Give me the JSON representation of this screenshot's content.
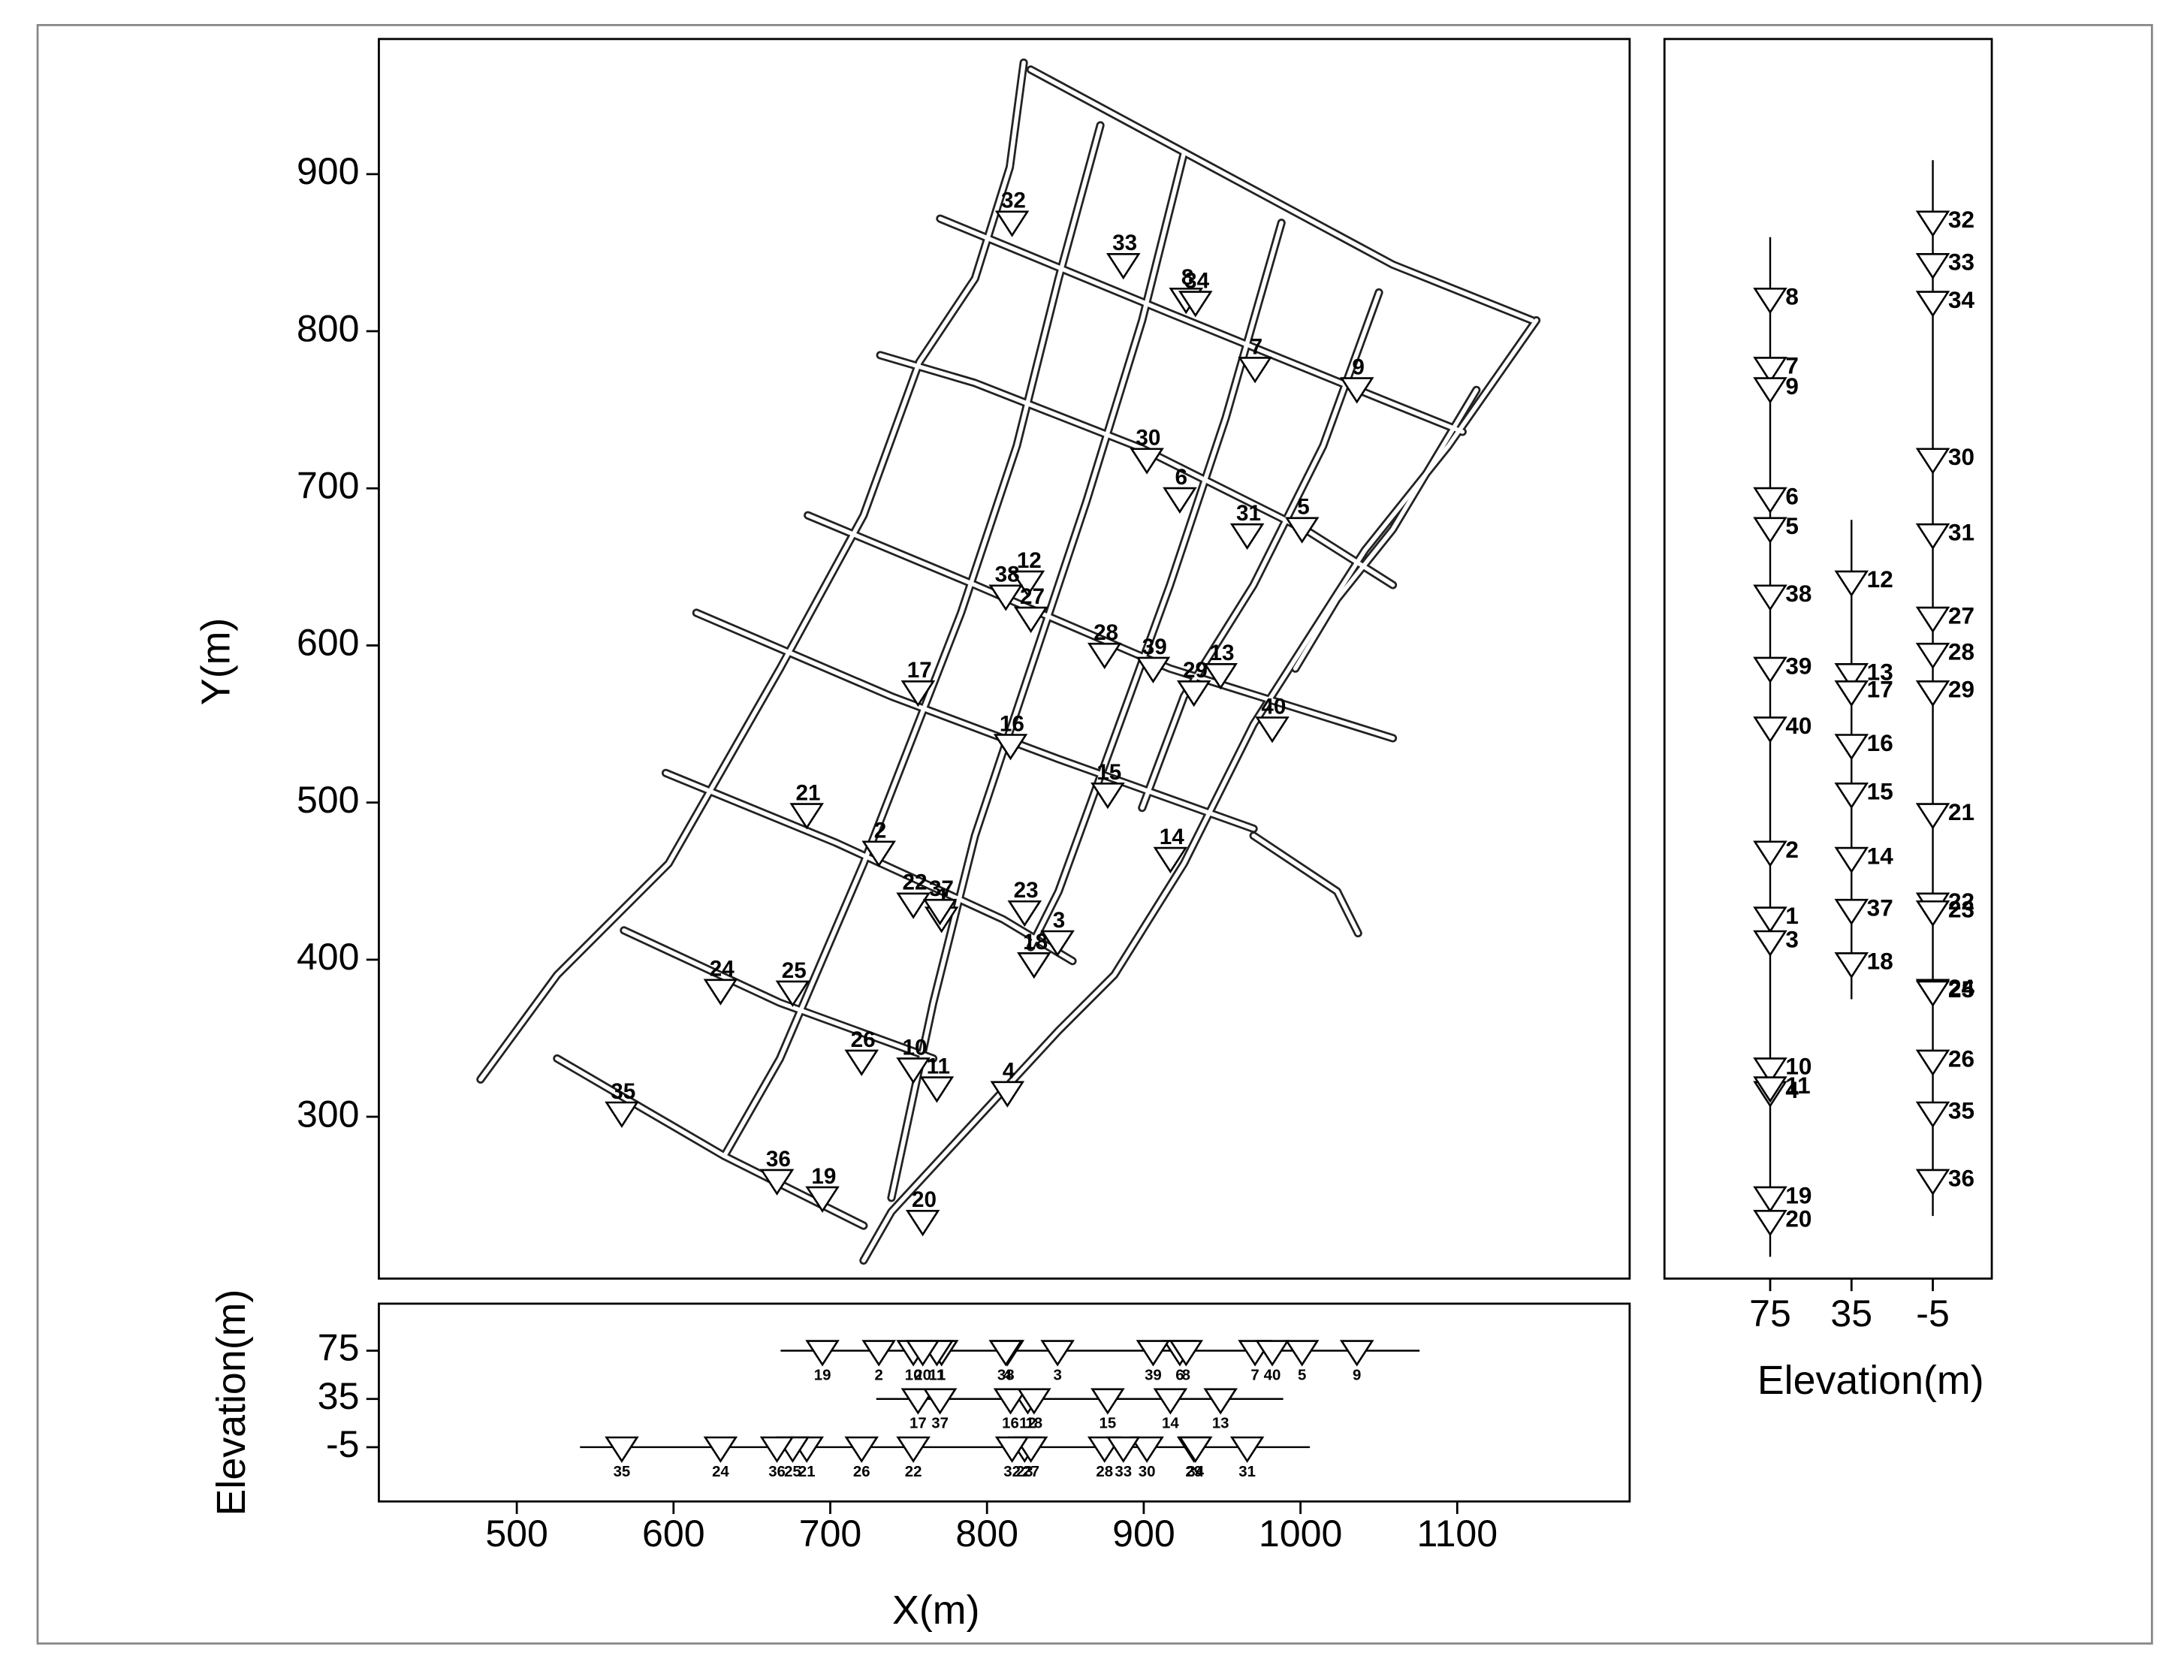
{
  "chart_data": {
    "type": "scatter",
    "xlabel": "X(m)",
    "ylabel": "Y(m)",
    "zlabel": "Elevation(m)",
    "xlim": [
      412,
      1210
    ],
    "ylim": [
      197,
      986
    ],
    "xticks": [
      500,
      600,
      700,
      800,
      900,
      1000,
      1100
    ],
    "yticks": [
      300,
      400,
      500,
      600,
      700,
      800,
      900
    ],
    "zlim": [
      -50,
      114
    ],
    "zlim_side": [
      127,
      -34
    ],
    "zticks": [
      75,
      35,
      -5
    ],
    "color": "#000000",
    "labels": [
      "1",
      "2",
      "3",
      "4",
      "5",
      "6",
      "7",
      "8",
      "9",
      "10",
      "11",
      "12",
      "13",
      "14",
      "15",
      "16",
      "17",
      "18",
      "19",
      "20",
      "21",
      "22",
      "23",
      "24",
      "25",
      "26",
      "27",
      "28",
      "29",
      "30",
      "31",
      "32",
      "33",
      "34",
      "35",
      "36",
      "37",
      "38",
      "39",
      "40"
    ],
    "x": [
      771,
      731,
      845,
      813,
      1001,
      923,
      971,
      927,
      1036,
      753,
      768,
      826,
      949,
      917,
      877,
      815,
      756,
      830,
      695,
      759,
      685,
      753,
      824,
      630,
      676,
      720,
      828,
      875,
      932,
      902,
      966,
      816,
      887,
      933,
      567,
      666,
      770,
      812,
      906,
      982
    ],
    "y": [
      426,
      468,
      411,
      315,
      674,
      693,
      776,
      820,
      763,
      330,
      318,
      640,
      581,
      464,
      505,
      536,
      570,
      397,
      248,
      233,
      492,
      435,
      430,
      380,
      379,
      335,
      617,
      594,
      570,
      718,
      670,
      869,
      842,
      818,
      302,
      259,
      431,
      631,
      585,
      547
    ],
    "z": [
      75,
      75,
      75,
      75,
      75,
      75,
      75,
      75,
      75,
      75,
      75,
      35,
      35,
      35,
      35,
      35,
      35,
      35,
      75,
      75,
      -5,
      -5,
      -5,
      -5,
      -5,
      -5,
      -5,
      -5,
      -5,
      -5,
      -5,
      -5,
      -5,
      -5,
      -5,
      -5,
      35,
      75,
      75,
      75
    ]
  }
}
